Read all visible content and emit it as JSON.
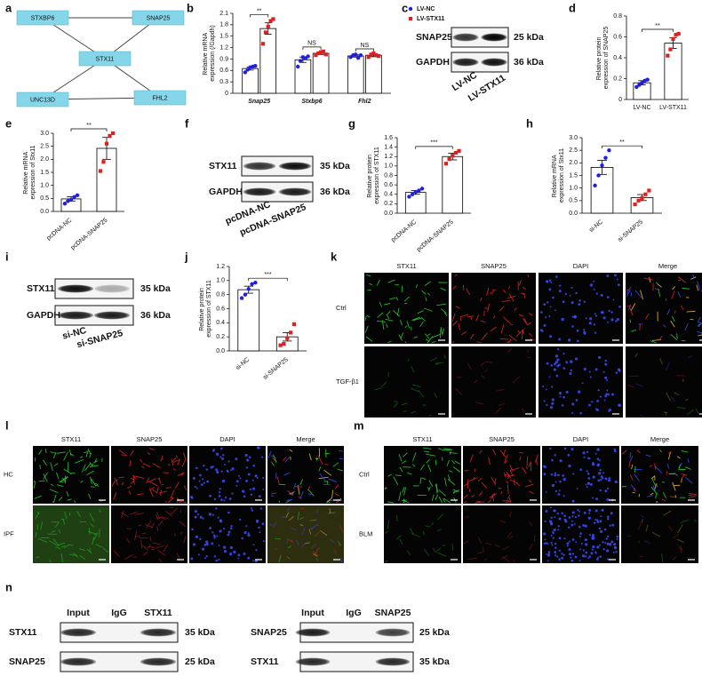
{
  "figure": {
    "panel_labels": [
      "a",
      "b",
      "c",
      "d",
      "e",
      "f",
      "g",
      "h",
      "i",
      "j",
      "k",
      "l",
      "m",
      "n"
    ],
    "network": {
      "nodes": [
        "STXBP6",
        "SNAP25",
        "STX11",
        "UNC13D",
        "FHL2"
      ]
    },
    "blots": [
      {
        "rows": [
          {
            "label": "SNAP25",
            "kda": "25 kDa"
          },
          {
            "label": "GAPDH",
            "kda": "36 kDa"
          }
        ],
        "lanes": [
          "LV-NC",
          "LV-STX11"
        ]
      },
      {
        "rows": [
          {
            "label": "STX11",
            "kda": "35 kDa"
          },
          {
            "label": "GAPDH",
            "kda": "36 kDa"
          }
        ],
        "lanes": [
          "pcDNA-NC",
          "pcDNA-SNAP25"
        ]
      },
      {
        "rows": [
          {
            "label": "STX11",
            "kda": "35 kDa"
          },
          {
            "label": "GAPDH",
            "kda": "36 kDa"
          }
        ],
        "lanes": [
          "si-NC",
          "si-SNAP25"
        ]
      }
    ],
    "coip": [
      {
        "columns": [
          "Input",
          "IgG",
          "STX11"
        ],
        "rows": [
          {
            "label": "STX11",
            "kda": "35 kDa"
          },
          {
            "label": "SNAP25",
            "kda": "25 kDa"
          }
        ]
      },
      {
        "columns": [
          "Input",
          "IgG",
          "SNAP25"
        ],
        "rows": [
          {
            "label": "SNAP25",
            "kda": "25 kDa"
          },
          {
            "label": "STX11",
            "kda": "35 kDa"
          }
        ]
      }
    ],
    "microscopy": [
      {
        "columns": [
          "STX11",
          "SNAP25",
          "DAPI",
          "Merge"
        ],
        "rows": [
          "Ctrl",
          "TGF-β1"
        ]
      },
      {
        "columns": [
          "STX11",
          "SNAP25",
          "DAPI",
          "Merge"
        ],
        "rows": [
          "HC",
          "IPF"
        ]
      },
      {
        "columns": [
          "STX11",
          "SNAP25",
          "DAPI",
          "Merge"
        ],
        "rows": [
          "Ctrl",
          "BLM"
        ]
      }
    ]
  },
  "chart_data": [
    {
      "type": "bar",
      "ylabel": "Relative mRNA expression (/Gapdh)",
      "categories": [
        "Snap25",
        "Stxbp6",
        "Fhl2"
      ],
      "series": [
        {
          "name": "LV-NC",
          "color": "#1f1fe0",
          "values": [
            0.65,
            0.88,
            0.98
          ],
          "errors": [
            0.04,
            0.07,
            0.03
          ],
          "points": [
            [
              0.55,
              0.62,
              0.68,
              0.7,
              0.72
            ],
            [
              0.7,
              0.85,
              0.95,
              0.92,
              0.97
            ],
            [
              0.95,
              1.0,
              1.02,
              0.93,
              1.0
            ]
          ]
        },
        {
          "name": "LV-STX11",
          "color": "#e02020",
          "values": [
            1.7,
            1.05,
            1.0
          ],
          "errors": [
            0.15,
            0.03,
            0.04
          ],
          "points": [
            [
              1.3,
              1.6,
              1.75,
              1.9,
              1.95
            ],
            [
              1.0,
              1.05,
              1.08,
              1.1,
              1.02
            ],
            [
              0.95,
              1.02,
              1.05,
              1.0,
              0.98
            ]
          ]
        }
      ],
      "ylim": [
        0,
        2.1
      ],
      "yticks": [
        0,
        0.3,
        0.6,
        0.9,
        1.2,
        1.5,
        1.8,
        2.1
      ],
      "annotations": [
        "**",
        "NS",
        "NS"
      ]
    },
    {
      "type": "bar",
      "ylabel": "Relative protein expression of SNAP25",
      "categories": [
        "LV-NC",
        "LV-STX11"
      ],
      "colors": [
        "#1f1fe0",
        "#e02020"
      ],
      "values": [
        0.16,
        0.54
      ],
      "errors": [
        0.02,
        0.05
      ],
      "points": [
        [
          0.12,
          0.14,
          0.16,
          0.18,
          0.19
        ],
        [
          0.42,
          0.48,
          0.58,
          0.62,
          0.63
        ]
      ],
      "ylim": [
        0,
        0.8
      ],
      "yticks": [
        0,
        0.2,
        0.4,
        0.6,
        0.8
      ],
      "annotations": [
        "**"
      ]
    },
    {
      "type": "bar",
      "ylabel": "Relative mRNA expression of Stx11",
      "categories": [
        "pcDNA-NC",
        "pcDNA-SNAP25"
      ],
      "colors": [
        "#1f1fe0",
        "#e02020"
      ],
      "values": [
        0.48,
        2.42
      ],
      "errors": [
        0.08,
        0.42
      ],
      "points": [
        [
          0.3,
          0.4,
          0.45,
          0.55,
          0.62
        ],
        [
          1.55,
          1.9,
          2.6,
          2.9,
          3.0
        ]
      ],
      "ylim": [
        0,
        3
      ],
      "yticks": [
        {
          "value": 0,
          "label": "0.0"
        },
        0.5,
        {
          "value": 1,
          "label": "1.0"
        },
        1.5,
        {
          "value": 2,
          "label": "2.0"
        },
        2.5,
        {
          "value": 3,
          "label": "3.0"
        }
      ],
      "annotations": [
        "**"
      ]
    },
    {
      "type": "bar",
      "ylabel": "Relative protein expression of STX11",
      "categories": [
        "pcDNA-NC",
        "pcDNA-SNAP25"
      ],
      "colors": [
        "#1f1fe0",
        "#e02020"
      ],
      "values": [
        0.44,
        1.2
      ],
      "errors": [
        0.04,
        0.07
      ],
      "points": [
        [
          0.35,
          0.4,
          0.45,
          0.48,
          0.52
        ],
        [
          1.05,
          1.15,
          1.22,
          1.28,
          1.32
        ]
      ],
      "ylim": [
        0,
        1.6
      ],
      "yticks": [
        {
          "value": 0,
          "label": "0.0"
        },
        0.2,
        0.4,
        0.6,
        0.8,
        {
          "value": 1,
          "label": "1.0"
        },
        1.2,
        1.4,
        1.6
      ],
      "annotations": [
        "***"
      ]
    },
    {
      "type": "bar",
      "ylabel": "Relative mRNA expression of Stx11",
      "categories": [
        "si-NC",
        "si-SNAP25"
      ],
      "colors": [
        "#1f1fe0",
        "#e02020"
      ],
      "values": [
        1.82,
        0.62
      ],
      "errors": [
        0.28,
        0.12
      ],
      "points": [
        [
          1.1,
          1.5,
          1.9,
          2.2,
          2.5
        ],
        [
          0.35,
          0.5,
          0.6,
          0.75,
          0.9
        ]
      ],
      "ylim": [
        0,
        3
      ],
      "yticks": [
        {
          "value": 0,
          "label": "0.0"
        },
        0.5,
        {
          "value": 1,
          "label": "1.0"
        },
        1.5,
        {
          "value": 2,
          "label": "2.0"
        },
        2.5,
        {
          "value": 3,
          "label": "3.0"
        }
      ],
      "annotations": [
        "**"
      ]
    },
    {
      "type": "bar",
      "ylabel": "Relative protein expression of STX11",
      "categories": [
        "si-NC",
        "si-SNAP25"
      ],
      "colors": [
        "#1f1fe0",
        "#e02020"
      ],
      "values": [
        0.87,
        0.2
      ],
      "errors": [
        0.05,
        0.06
      ],
      "points": [
        [
          0.75,
          0.8,
          0.88,
          0.95,
          0.97
        ],
        [
          0.08,
          0.1,
          0.18,
          0.26,
          0.38
        ]
      ],
      "ylim": [
        0,
        1.2
      ],
      "yticks": [
        {
          "value": 0,
          "label": "0.0"
        },
        0.2,
        0.4,
        0.6,
        0.8,
        {
          "value": 1,
          "label": "1.0"
        },
        1.2
      ],
      "annotations": [
        "***"
      ]
    }
  ]
}
